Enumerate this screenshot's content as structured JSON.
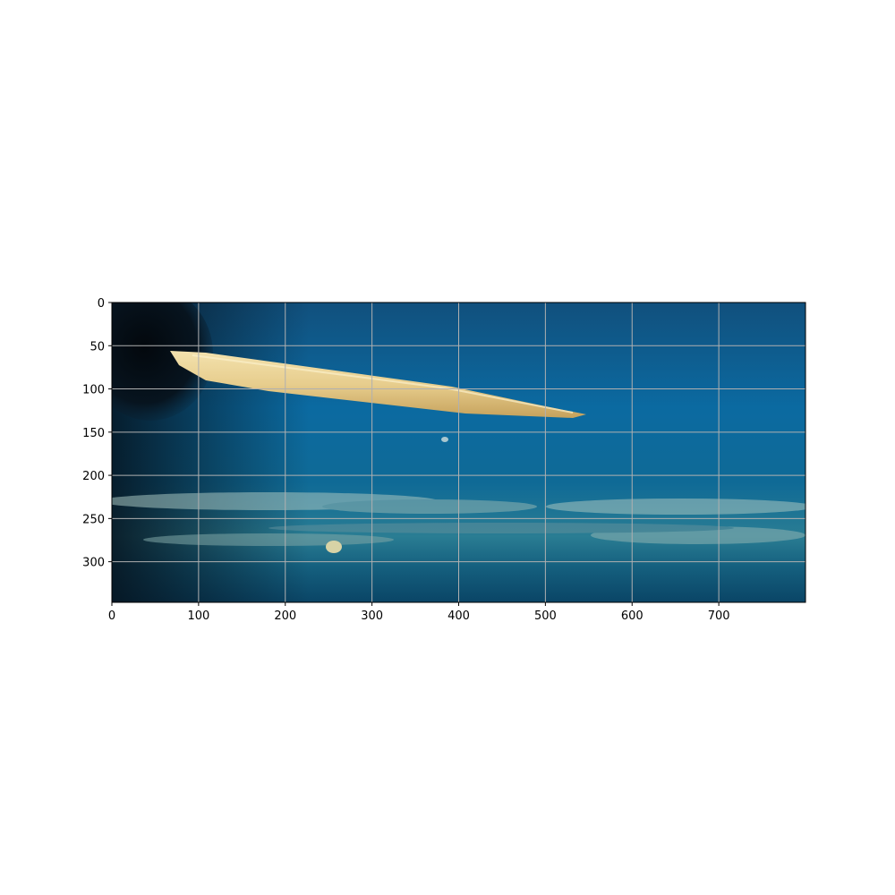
{
  "chart_data": {
    "type": "image",
    "xlim": [
      0,
      800
    ],
    "ylim": [
      347,
      0
    ],
    "grid": true,
    "x_ticks": [
      0,
      100,
      200,
      300,
      400,
      500,
      600,
      700
    ],
    "y_ticks": [
      0,
      50,
      100,
      150,
      200,
      250,
      300
    ],
    "x_tick_labels": [
      "0",
      "100",
      "200",
      "300",
      "400",
      "500",
      "600",
      "700"
    ],
    "y_tick_labels": [
      "0",
      "50",
      "100",
      "150",
      "200",
      "250",
      "300"
    ]
  },
  "colors": {
    "water_top": "#0f5a8c",
    "water_mid": "#0b6aa1",
    "water_bottom": "#0b4d73",
    "shadow": "#06131d",
    "stick": "#ead39a",
    "stick_dark": "#c9aa63",
    "sediment": "#8fb3b2",
    "grid": "#b0b0b0",
    "axis": "#000000"
  }
}
